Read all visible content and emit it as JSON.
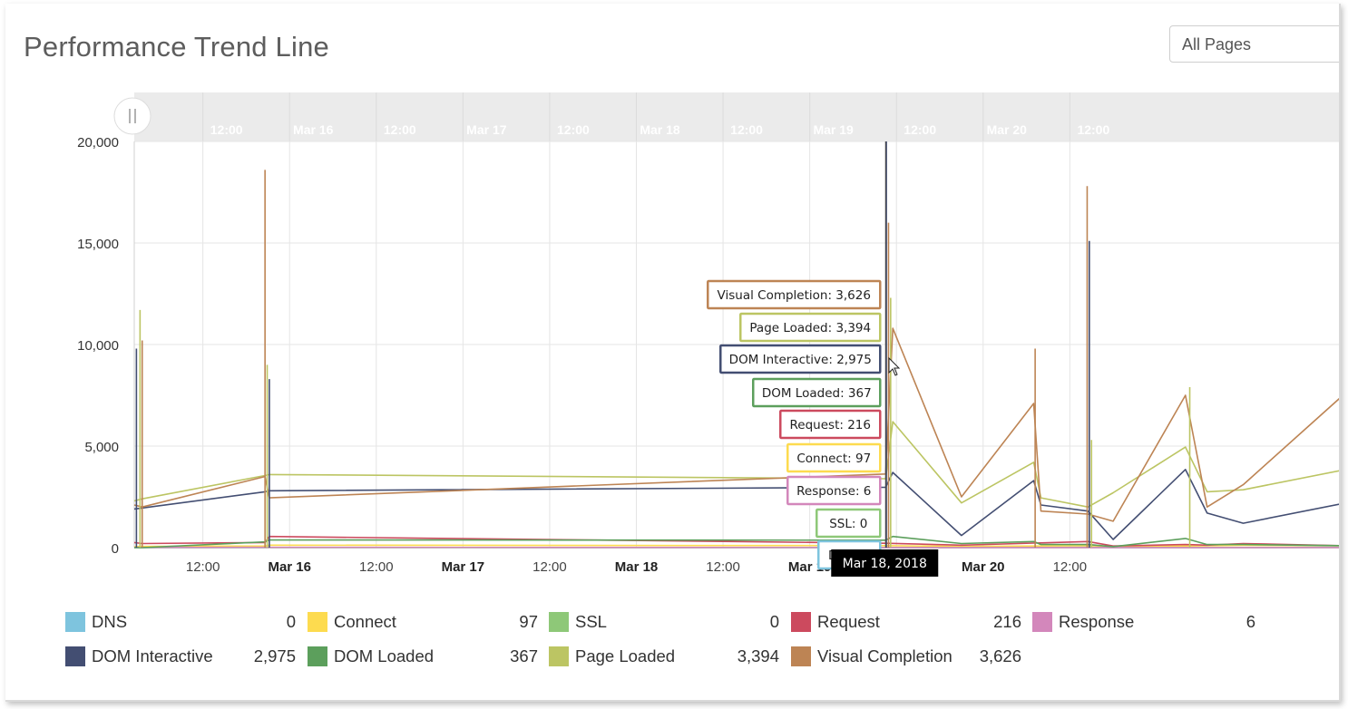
{
  "header": {
    "title": "Performance Trend Line",
    "page_filter": "All Pages"
  },
  "colors": {
    "dns": "#7ec4de",
    "connect": "#fddb4f",
    "ssl": "#8ec878",
    "request": "#cc4a5e",
    "response": "#d387bb",
    "dom_interactive": "#434e72",
    "dom_loaded": "#5c9f5c",
    "page_loaded": "#bcc563",
    "visual_completion": "#bd8454"
  },
  "chart_data": {
    "type": "line",
    "yticks": [
      0,
      5000,
      10000,
      15000,
      20000
    ],
    "yticklabels": [
      "0",
      "5,000",
      "10,000",
      "15,000",
      "20,000"
    ],
    "ylim": [
      0,
      20000
    ],
    "xlim_hours": [
      -9.5,
      157.5
    ],
    "x_ticks": [
      {
        "label": "12:00",
        "bold": false
      },
      {
        "label": "Mar 16",
        "bold": true
      },
      {
        "label": "12:00",
        "bold": false
      },
      {
        "label": "Mar 17",
        "bold": true
      },
      {
        "label": "12:00",
        "bold": false
      },
      {
        "label": "Mar 18",
        "bold": true
      },
      {
        "label": "12:00",
        "bold": false
      },
      {
        "label": "Mar 19",
        "bold": true
      },
      {
        "label": "12:00",
        "bold": false
      },
      {
        "label": "Mar 20",
        "bold": true
      },
      {
        "label": "12:00",
        "bold": false
      }
    ],
    "navigator_ticks": [
      "12:00",
      "Mar 16",
      "12:00",
      "Mar 17",
      "12:00",
      "Mar 18",
      "12:00",
      "Mar 19",
      "12:00",
      "Mar 20",
      "12:00"
    ],
    "series": [
      {
        "name": "DNS",
        "key": "dns",
        "x": [
          -9.5,
          -8.4,
          8.6,
          9.2,
          94.5,
          105,
          122.5,
          126,
          136,
          139,
          144,
          157.5
        ],
        "y": [
          20,
          0,
          0,
          10,
          0,
          0,
          20,
          0,
          0,
          0,
          0,
          20
        ]
      },
      {
        "name": "Connect",
        "key": "connect",
        "x": [
          -9.5,
          -8.4,
          8.6,
          9.2,
          94.5,
          105,
          122.5,
          126,
          136,
          139,
          144,
          157.5
        ],
        "y": [
          40,
          60,
          80,
          120,
          97,
          60,
          100,
          60,
          80,
          90,
          110,
          90
        ]
      },
      {
        "name": "SSL",
        "key": "ssl",
        "x": [
          -9.5,
          -8.4,
          8.6,
          9.2,
          94.5,
          105,
          122.5,
          126,
          136,
          139,
          144,
          157.5
        ],
        "y": [
          0,
          0,
          0,
          0,
          0,
          0,
          0,
          0,
          0,
          0,
          0,
          0
        ]
      },
      {
        "name": "Request",
        "key": "request",
        "x": [
          -9.5,
          -8.4,
          8.6,
          9.2,
          94.5,
          105,
          122.5,
          126,
          136,
          139,
          144,
          157.5
        ],
        "y": [
          250,
          200,
          250,
          550,
          216,
          120,
          300,
          80,
          150,
          120,
          200,
          100
        ]
      },
      {
        "name": "Response",
        "key": "response",
        "x": [
          -9.5,
          -8.4,
          8.6,
          9.2,
          94.5,
          105,
          122.5,
          126,
          136,
          139,
          144,
          157.5
        ],
        "y": [
          10,
          8,
          12,
          12,
          6,
          5,
          5,
          5,
          5,
          5,
          5,
          5
        ]
      },
      {
        "name": "DOM Interactive",
        "key": "dom_interactive",
        "x": [
          -9.5,
          -8.4,
          8.6,
          9.2,
          94.5,
          95.5,
          105,
          115,
          116,
          122.5,
          126,
          136,
          139,
          144,
          157.5
        ],
        "y": [
          1900,
          1950,
          2750,
          2800,
          2975,
          3700,
          600,
          3300,
          2100,
          1800,
          400,
          3850,
          1700,
          1200,
          2150
        ]
      },
      {
        "name": "DOM Loaded",
        "key": "dom_loaded",
        "x": [
          -9.5,
          -8.4,
          8.6,
          9.2,
          94.5,
          95.5,
          105,
          115,
          116,
          122.5,
          126,
          136,
          139,
          144,
          157.5
        ],
        "y": [
          0,
          0,
          280,
          380,
          367,
          550,
          200,
          300,
          150,
          150,
          50,
          450,
          150,
          150,
          100
        ]
      },
      {
        "name": "Page Loaded",
        "key": "page_loaded",
        "x": [
          -9.5,
          -8.4,
          8.6,
          9.2,
          94.5,
          95.5,
          105,
          115,
          116,
          122.5,
          126,
          136,
          139,
          144,
          157.5
        ],
        "y": [
          2300,
          2400,
          3550,
          3600,
          3394,
          6200,
          2200,
          4200,
          2450,
          2000,
          2700,
          4950,
          2750,
          2850,
          3800
        ]
      },
      {
        "name": "Visual Completion",
        "key": "visual_completion",
        "x": [
          -9.5,
          -8.4,
          8.6,
          9.2,
          94.5,
          95.5,
          105,
          115,
          116,
          122.5,
          126,
          136,
          139,
          144,
          157.5
        ],
        "y": [
          2100,
          2000,
          3500,
          2450,
          3626,
          10800,
          2500,
          7100,
          1800,
          1650,
          1300,
          7500,
          2000,
          3100,
          7400
        ]
      }
    ],
    "spikes": [
      {
        "x": -9.2,
        "y": 9800,
        "key": "dom_interactive"
      },
      {
        "x": -8.7,
        "y": 11700,
        "key": "page_loaded"
      },
      {
        "x": -8.4,
        "y": 10200,
        "key": "visual_completion"
      },
      {
        "x": 8.6,
        "y": 18600,
        "key": "visual_completion"
      },
      {
        "x": 8.9,
        "y": 9000,
        "key": "page_loaded"
      },
      {
        "x": 9.2,
        "y": 8300,
        "key": "dom_interactive"
      },
      {
        "x": 94.6,
        "y": 20000,
        "key": "dom_interactive"
      },
      {
        "x": 94.9,
        "y": 16000,
        "key": "visual_completion"
      },
      {
        "x": 95.2,
        "y": 12300,
        "key": "page_loaded"
      },
      {
        "x": 115.2,
        "y": 9800,
        "key": "visual_completion"
      },
      {
        "x": 122.4,
        "y": 17800,
        "key": "visual_completion"
      },
      {
        "x": 122.7,
        "y": 15100,
        "key": "dom_interactive"
      },
      {
        "x": 123.0,
        "y": 5300,
        "key": "page_loaded"
      },
      {
        "x": 136.6,
        "y": 7900,
        "key": "page_loaded"
      }
    ],
    "hover": {
      "x": 94.5,
      "date_label": "Mar 18, 2018",
      "labels": [
        {
          "text": "Visual Completion: 3,626",
          "key": "visual_completion"
        },
        {
          "text": "Page Loaded: 3,394",
          "key": "page_loaded"
        },
        {
          "text": "DOM Interactive: 2,975",
          "key": "dom_interactive"
        },
        {
          "text": "DOM Loaded: 367",
          "key": "dom_loaded"
        },
        {
          "text": "Request: 216",
          "key": "request"
        },
        {
          "text": "Connect: 97",
          "key": "connect"
        },
        {
          "text": "Response: 6",
          "key": "response"
        },
        {
          "text": "SSL: 0",
          "key": "ssl"
        },
        {
          "text": "DNS: 0",
          "key": "dns"
        }
      ]
    },
    "legend": [
      {
        "name": "DNS",
        "value": "0",
        "key": "dns"
      },
      {
        "name": "Connect",
        "value": "97",
        "key": "connect"
      },
      {
        "name": "SSL",
        "value": "0",
        "key": "ssl"
      },
      {
        "name": "Request",
        "value": "216",
        "key": "request"
      },
      {
        "name": "Response",
        "value": "6",
        "key": "response"
      },
      {
        "name": "DOM Interactive",
        "value": "2,975",
        "key": "dom_interactive"
      },
      {
        "name": "DOM Loaded",
        "value": "367",
        "key": "dom_loaded"
      },
      {
        "name": "Page Loaded",
        "value": "3,394",
        "key": "page_loaded"
      },
      {
        "name": "Visual Completion",
        "value": "3,626",
        "key": "visual_completion"
      }
    ]
  }
}
